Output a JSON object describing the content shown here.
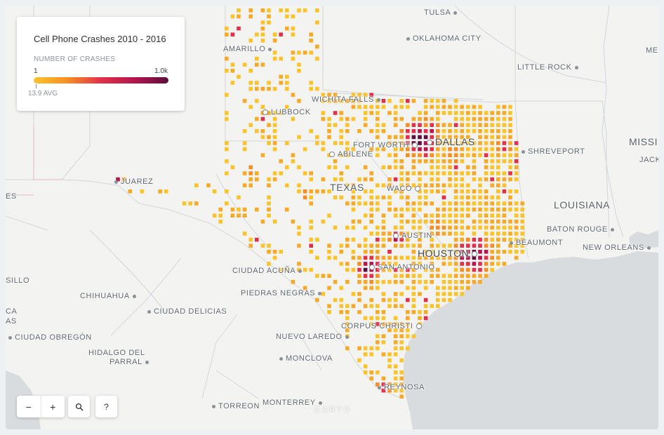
{
  "legend": {
    "title": "Cell Phone Crashes 2010 - 2016",
    "subtitle": "NUMBER OF CRASHES",
    "min_label": "1",
    "max_label": "1.0k",
    "avg_label": "13.9 AVG",
    "ramp_colors": [
      "#fcc32a",
      "#f58f25",
      "#e3304a",
      "#b3154c",
      "#5c0e3e"
    ]
  },
  "labels": {
    "tulsa": "TULSA",
    "oklahoma_city": "OKLAHOMA CITY",
    "amarillo": "AMARILLO",
    "little_rock": "LITTLE ROCK",
    "wichita_falls": "WICHITA FALLS",
    "lubbock": "LUBBOCK",
    "fort_worth": "FORT WORTH",
    "dallas": "DALLAS",
    "shreveport": "SHREVEPORT",
    "abilene": "ABILENE",
    "juarez": "JUAREZ",
    "texas": "TEXAS",
    "waco": "WACO",
    "louisiana": "LOUISIANA",
    "austin": "AUSTIN",
    "baton_rouge": "BATON ROUGE",
    "beaumont": "BEAUMONT",
    "new_orleans": "NEW ORLEANS",
    "houston": "HOUSTON",
    "ciudad_acuna": "CIUDAD ACUÑA",
    "san_antonio": "SAN ANTONIO",
    "piedras_negras": "PIEDRAS NEGRAS",
    "chihuahua": "CHIHUAHUA",
    "ciudad_delicias": "CIUDAD DELICIAS",
    "corpus_christi": "CORPUS CHRISTI",
    "nuevo_laredo": "NUEVO LAREDO",
    "ciudad_obregon": "CIUDAD OBREGÓN",
    "hidalgo_del_parral_1": "HIDALGO DEL",
    "hidalgo_del_parral_2": "PARRAL",
    "monclova": "MONCLOVA",
    "reynosa": "REYNOSA",
    "torreon": "TORREON",
    "monterrey": "MONTERREY",
    "edge_memphis": "MEMP",
    "edge_mississippi": "MISSIS",
    "edge_jackson": "JACK",
    "edge_es": "ES",
    "edge_sillo": "SILLO",
    "edge_ca": "CA",
    "edge_as": "AS"
  },
  "controls": {
    "zoom_out": "−",
    "zoom_in": "+",
    "search_icon": "magnifier-icon",
    "help": "?"
  },
  "attribution": "CARTO"
}
